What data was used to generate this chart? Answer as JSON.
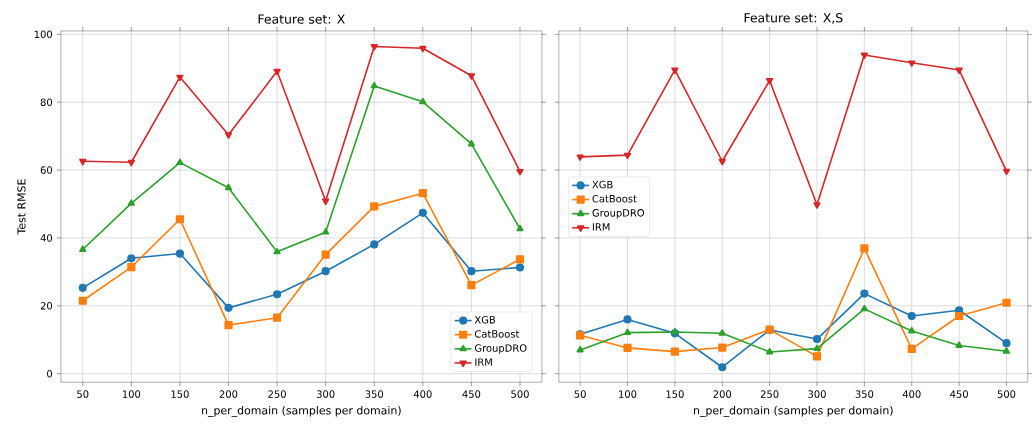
{
  "chart_data": [
    {
      "type": "line",
      "title": "Feature set: X",
      "xlabel": "n_per_domain (samples per domain)",
      "ylabel": "Test RMSE",
      "x": [
        50,
        100,
        150,
        200,
        250,
        300,
        350,
        400,
        450,
        500
      ],
      "series": [
        {
          "name": "XGB",
          "color": "#1f77b4",
          "marker": "circle",
          "values": [
            25.3,
            34.0,
            35.4,
            19.4,
            23.4,
            30.2,
            38.1,
            47.4,
            30.2,
            31.3
          ]
        },
        {
          "name": "CatBoost",
          "color": "#ff7f0e",
          "marker": "square",
          "values": [
            21.5,
            31.4,
            45.5,
            14.3,
            16.5,
            35.1,
            49.3,
            53.2,
            26.1,
            33.7
          ]
        },
        {
          "name": "GroupDRO",
          "color": "#2ca02c",
          "marker": "triangle",
          "values": [
            36.6,
            50.2,
            62.2,
            54.8,
            35.9,
            41.7,
            84.8,
            80.1,
            67.7,
            42.7
          ]
        },
        {
          "name": "IRM",
          "color": "#d62728",
          "marker": "triangle down",
          "values": [
            62.6,
            62.3,
            87.4,
            70.4,
            89.1,
            50.9,
            96.4,
            95.9,
            87.8,
            59.6
          ]
        }
      ],
      "xlim": [
        27.5,
        522.5
      ],
      "ylim": [
        -2.5,
        101
      ],
      "xticks": [
        50,
        100,
        150,
        200,
        250,
        300,
        350,
        400,
        450,
        500
      ],
      "yticks": [
        0,
        20,
        40,
        60,
        80,
        100
      ],
      "grid": true,
      "legend": "bottom right",
      "line_style": "solid"
    },
    {
      "type": "line",
      "title": "Feature set: X,S",
      "xlabel": "n_per_domain (samples per domain)",
      "x": [
        50,
        100,
        150,
        200,
        250,
        300,
        350,
        400,
        450,
        500
      ],
      "series": [
        {
          "name": "XGB",
          "color": "#1f77b4",
          "marker": "circle",
          "values": [
            11.6,
            16.0,
            11.9,
            1.9,
            12.9,
            10.2,
            23.6,
            17.0,
            18.7,
            9.0
          ]
        },
        {
          "name": "CatBoost",
          "color": "#ff7f0e",
          "marker": "square",
          "values": [
            11.3,
            7.6,
            6.5,
            7.7,
            13.0,
            5.1,
            36.9,
            7.3,
            17.0,
            20.9
          ]
        },
        {
          "name": "GroupDRO",
          "color": "#2ca02c",
          "marker": "triangle",
          "values": [
            7.0,
            12.1,
            12.3,
            11.9,
            6.4,
            7.4,
            19.1,
            12.6,
            8.3,
            6.6
          ]
        },
        {
          "name": "IRM",
          "color": "#d62728",
          "marker": "triangle down",
          "values": [
            63.9,
            64.4,
            89.5,
            62.6,
            86.4,
            49.8,
            93.9,
            91.6,
            89.5,
            59.7
          ]
        }
      ],
      "xlim": [
        27.5,
        522.5
      ],
      "ylim": [
        -2.5,
        101
      ],
      "xticks": [
        50,
        100,
        150,
        200,
        250,
        300,
        350,
        400,
        450,
        500
      ],
      "yticks": [
        0,
        20,
        40,
        60,
        80,
        100
      ],
      "grid": true,
      "legend": "left",
      "line_style": "solid",
      "tick_labels": "x"
    }
  ]
}
